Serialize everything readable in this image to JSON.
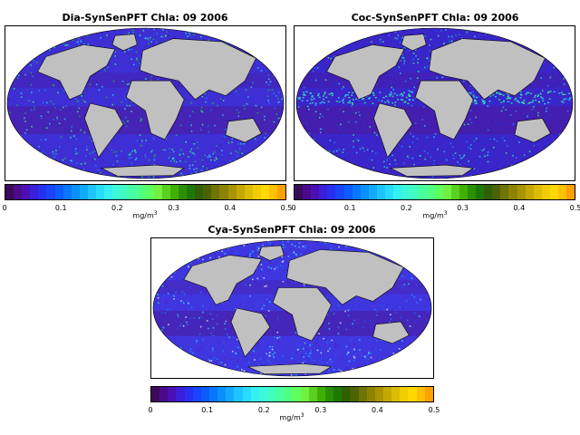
{
  "maps": [
    {
      "id": "dia",
      "title": "Dia-SynSenPFT Chla: 09 2006",
      "ocean_base": "#3d2fd4"
    },
    {
      "id": "coc",
      "title": "Coc-SynSenPFT Chla: 09 2006",
      "ocean_base": "#3a25c8"
    },
    {
      "id": "cya",
      "title": "Cya-SynSenPFT Chla: 09 2006",
      "ocean_base": "#3f36e0"
    }
  ],
  "colorbar": {
    "ticks": [
      "0",
      "0.1",
      "0.2",
      "0.3",
      "0.4",
      "0.5"
    ],
    "unit_base": "mg/m",
    "unit_exp": "3",
    "colors": [
      "#3c0a5a",
      "#4b0a8c",
      "#4b10b4",
      "#3a1fd8",
      "#2830f0",
      "#1a44ff",
      "#0a5cff",
      "#0a76ff",
      "#0a90ff",
      "#12aaff",
      "#1ec4ff",
      "#28dcff",
      "#34f0f0",
      "#3cf8d8",
      "#40fcc0",
      "#48ffa0",
      "#50ff80",
      "#60ff60",
      "#70f040",
      "#5ad020",
      "#40b000",
      "#2a9000",
      "#1e7800",
      "#306000",
      "#4c6400",
      "#707400",
      "#8c8400",
      "#a89400",
      "#c4a800",
      "#dcbc00",
      "#f0cc00",
      "#ffd800",
      "#ffc000",
      "#ffa000"
    ],
    "land_color": "#c0c0c0"
  }
}
